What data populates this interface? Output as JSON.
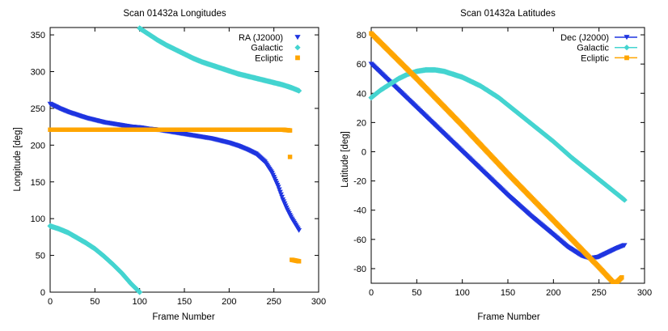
{
  "chart_data": [
    {
      "type": "scatter",
      "title": "Scan 01432a Longitudes",
      "xlabel": "Frame Number",
      "ylabel": "Longitude [deg]",
      "xlim": [
        0,
        300
      ],
      "ylim": [
        0,
        360
      ],
      "xticks": [
        0,
        50,
        100,
        150,
        200,
        250,
        300
      ],
      "yticks": [
        0,
        50,
        100,
        150,
        200,
        250,
        300,
        350
      ],
      "legend_position": "top-right",
      "series": [
        {
          "name": "RA (J2000)",
          "color": "#1f35e0",
          "marker": "triangle-down",
          "points": [
            [
              0,
              256
            ],
            [
              10,
              250
            ],
            [
              20,
              245
            ],
            [
              30,
              241
            ],
            [
              40,
              237
            ],
            [
              50,
              234
            ],
            [
              60,
              231
            ],
            [
              70,
              229
            ],
            [
              80,
              227
            ],
            [
              90,
              225
            ],
            [
              100,
              224
            ],
            [
              110,
              222
            ],
            [
              120,
              221
            ],
            [
              130,
              219
            ],
            [
              140,
              217
            ],
            [
              150,
              215
            ],
            [
              160,
              213
            ],
            [
              170,
              211
            ],
            [
              180,
              209
            ],
            [
              190,
              206
            ],
            [
              200,
              203
            ],
            [
              210,
              199
            ],
            [
              220,
              194
            ],
            [
              230,
              188
            ],
            [
              240,
              177
            ],
            [
              248,
              162
            ],
            [
              255,
              143
            ],
            [
              260,
              126
            ],
            [
              265,
              112
            ],
            [
              270,
              100
            ],
            [
              275,
              90
            ],
            [
              278,
              84
            ]
          ]
        },
        {
          "name": "Galactic",
          "color": "#44d4d0",
          "marker": "diamond",
          "segments": [
            [
              [
                0,
                90
              ],
              [
                10,
                86
              ],
              [
                20,
                81
              ],
              [
                30,
                74
              ],
              [
                40,
                67
              ],
              [
                50,
                59
              ],
              [
                60,
                49
              ],
              [
                70,
                38
              ],
              [
                80,
                26
              ],
              [
                90,
                12
              ],
              [
                100,
                0
              ]
            ],
            [
              [
                100,
                359
              ],
              [
                110,
                351
              ],
              [
                120,
                343
              ],
              [
                130,
                336
              ],
              [
                140,
                330
              ],
              [
                150,
                324
              ],
              [
                160,
                318
              ],
              [
                170,
                313
              ],
              [
                180,
                309
              ],
              [
                190,
                305
              ],
              [
                200,
                301
              ],
              [
                210,
                297
              ],
              [
                220,
                294
              ],
              [
                230,
                291
              ],
              [
                240,
                288
              ],
              [
                250,
                285
              ],
              [
                260,
                282
              ],
              [
                270,
                278
              ],
              [
                278,
                274
              ]
            ]
          ]
        },
        {
          "name": "Ecliptic",
          "color": "#ffa500",
          "marker": "square",
          "segments": [
            [
              [
                0,
                221
              ],
              [
                50,
                221
              ],
              [
                100,
                221
              ],
              [
                150,
                221
              ],
              [
                200,
                221
              ],
              [
                250,
                221
              ],
              [
                260,
                221
              ],
              [
                268,
                220
              ]
            ],
            [
              [
                268,
                184
              ]
            ],
            [
              [
                270,
                44
              ],
              [
                274,
                43
              ],
              [
                278,
                42
              ]
            ]
          ]
        }
      ]
    },
    {
      "type": "line",
      "title": "Scan 01432a Latitudes",
      "xlabel": "Frame Number",
      "ylabel": "Latitude [deg]",
      "xlim": [
        0,
        300
      ],
      "ylim": [
        -90,
        85
      ],
      "xticks": [
        0,
        50,
        100,
        150,
        200,
        250,
        300
      ],
      "yticks": [
        -80,
        -60,
        -40,
        -20,
        0,
        20,
        40,
        60,
        80
      ],
      "legend_position": "top-right",
      "series": [
        {
          "name": "Dec (J2000)",
          "color": "#1f35e0",
          "marker": "triangle-down",
          "points": [
            [
              0,
              60
            ],
            [
              25,
              45
            ],
            [
              50,
              30
            ],
            [
              75,
              15
            ],
            [
              100,
              0
            ],
            [
              125,
              -15
            ],
            [
              150,
              -30
            ],
            [
              175,
              -44
            ],
            [
              200,
              -57
            ],
            [
              215,
              -65
            ],
            [
              230,
              -71
            ],
            [
              240,
              -73
            ],
            [
              250,
              -72
            ],
            [
              260,
              -69
            ],
            [
              270,
              -66
            ],
            [
              278,
              -64
            ]
          ]
        },
        {
          "name": "Galactic",
          "color": "#44d4d0",
          "marker": "diamond",
          "points": [
            [
              0,
              37
            ],
            [
              10,
              42
            ],
            [
              20,
              46
            ],
            [
              30,
              50
            ],
            [
              40,
              53
            ],
            [
              50,
              55
            ],
            [
              60,
              56
            ],
            [
              70,
              56
            ],
            [
              80,
              55
            ],
            [
              90,
              53
            ],
            [
              100,
              51
            ],
            [
              120,
              45
            ],
            [
              140,
              37
            ],
            [
              160,
              27
            ],
            [
              180,
              17
            ],
            [
              200,
              7
            ],
            [
              220,
              -4
            ],
            [
              240,
              -14
            ],
            [
              260,
              -24
            ],
            [
              278,
              -33
            ]
          ]
        },
        {
          "name": "Ecliptic",
          "color": "#ffa500",
          "marker": "square",
          "points": [
            [
              0,
              81
            ],
            [
              50,
              50
            ],
            [
              100,
              18
            ],
            [
              150,
              -15
            ],
            [
              200,
              -47
            ],
            [
              250,
              -79
            ],
            [
              265,
              -89
            ],
            [
              270,
              -89
            ],
            [
              275,
              -86
            ]
          ]
        }
      ]
    }
  ]
}
